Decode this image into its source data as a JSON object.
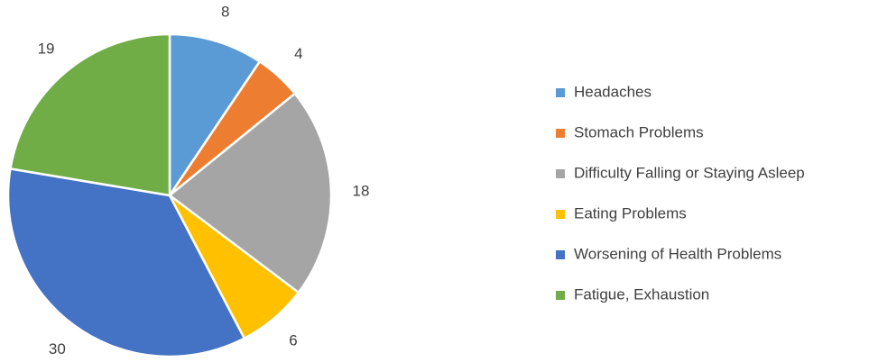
{
  "chart_data": {
    "type": "pie",
    "categories": [
      "Headaches",
      "Stomach Problems",
      "Difficulty Falling or Staying Asleep",
      "Eating Problems",
      "Worsening of Health Problems",
      "Fatigue, Exhaustion"
    ],
    "values": [
      8,
      4,
      18,
      6,
      30,
      19
    ],
    "colors": [
      "#5b9bd5",
      "#ed7d31",
      "#a5a5a5",
      "#ffc000",
      "#4472c4",
      "#70ad47"
    ],
    "legend": "right"
  }
}
